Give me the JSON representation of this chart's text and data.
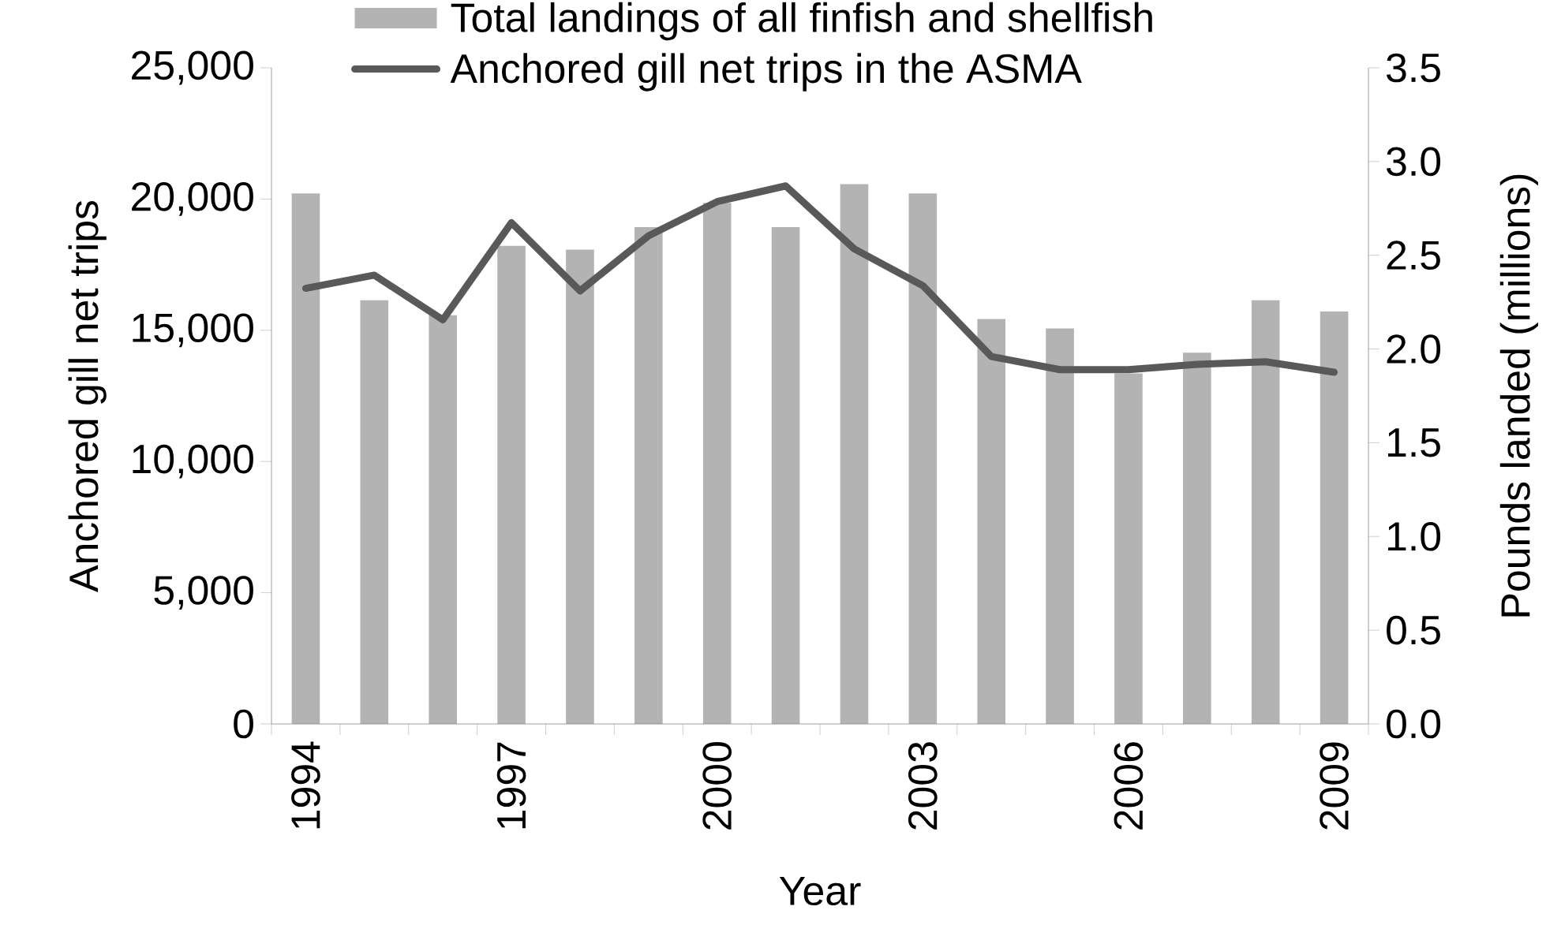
{
  "chart_data": {
    "type": "bar",
    "categories": [
      "1994",
      null,
      null,
      "1997",
      null,
      null,
      "2000",
      null,
      null,
      "2003",
      null,
      null,
      "2006",
      null,
      null,
      "2009"
    ],
    "series": [
      {
        "name": "Total landings of all finfish and shellfish",
        "type": "bar",
        "axis": "y2",
        "color": "#b3b3b3",
        "values": [
          2.83,
          2.26,
          2.18,
          2.55,
          2.53,
          2.65,
          2.78,
          2.65,
          2.88,
          2.83,
          2.16,
          2.11,
          1.87,
          1.98,
          2.26,
          2.2
        ]
      },
      {
        "name": "Anchored gill net trips in the ASMA",
        "type": "line",
        "axis": "y",
        "color": "#595959",
        "values": [
          16600,
          17100,
          15400,
          19100,
          16500,
          18600,
          19900,
          20500,
          18100,
          16700,
          14000,
          13500,
          13500,
          13700,
          13800,
          13400
        ]
      }
    ],
    "xlabel": "Year",
    "ylabel": "Anchored gill net trips",
    "y2label": "Pounds landed (millions)",
    "ylim": [
      0,
      25000
    ],
    "yticks": [
      0,
      {
        "value": 5000,
        "label": "5,000"
      },
      {
        "value": 10000,
        "label": "10,000"
      },
      {
        "value": 15000,
        "label": "15,000"
      },
      {
        "value": 20000,
        "label": "20,000"
      },
      {
        "value": 25000,
        "label": "25,000"
      }
    ],
    "y2lim": [
      0,
      3.5
    ],
    "y2ticks": [
      {
        "value": 0,
        "label": "0.0"
      },
      {
        "value": 0.5,
        "label": "0.5"
      },
      {
        "value": 1,
        "label": "1.0"
      },
      {
        "value": 1.5,
        "label": "1.5"
      },
      {
        "value": 2,
        "label": "2.0"
      },
      {
        "value": 2.5,
        "label": "2.5"
      },
      {
        "value": 3,
        "label": "3.0"
      },
      {
        "value": 3.5,
        "label": "3.5"
      }
    ],
    "legend": "top"
  }
}
